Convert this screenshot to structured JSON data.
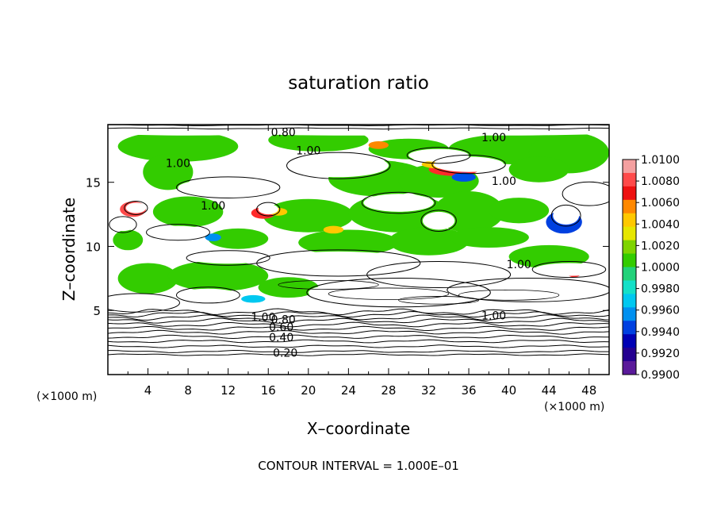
{
  "chart_data": {
    "type": "heatmap",
    "title": "saturation ratio",
    "xlabel": "X–coordinate",
    "ylabel": "Z–coordinate",
    "x_unit_label": "(×1000 m)",
    "y_unit_label": "(×1000 m)",
    "xlim": [
      0,
      50
    ],
    "ylim": [
      0,
      19.5
    ],
    "x_ticks": [
      4,
      8,
      12,
      16,
      20,
      24,
      28,
      32,
      36,
      40,
      44,
      48
    ],
    "y_ticks": [
      5,
      10,
      15
    ],
    "footer": "CONTOUR INTERVAL = 1.000E–01",
    "contour_labels": [
      {
        "x": 17.5,
        "y": 18.9,
        "text": "0.80"
      },
      {
        "x": 20.0,
        "y": 17.5,
        "text": "1.00"
      },
      {
        "x": 38.5,
        "y": 18.5,
        "text": "1.00"
      },
      {
        "x": 7.0,
        "y": 16.5,
        "text": "1.00"
      },
      {
        "x": 39.5,
        "y": 15.1,
        "text": "1.00"
      },
      {
        "x": 10.5,
        "y": 13.2,
        "text": "1.00"
      },
      {
        "x": 41.0,
        "y": 8.6,
        "text": "1.00"
      },
      {
        "x": 15.5,
        "y": 4.5,
        "text": "1.00"
      },
      {
        "x": 38.5,
        "y": 4.6,
        "text": "1.00"
      },
      {
        "x": 17.5,
        "y": 4.3,
        "text": "0.80"
      },
      {
        "x": 17.3,
        "y": 3.7,
        "text": "0.60"
      },
      {
        "x": 17.3,
        "y": 2.9,
        "text": "0.40"
      },
      {
        "x": 17.7,
        "y": 1.7,
        "text": "0.20"
      }
    ],
    "colorbar": {
      "labels": [
        "1.0100",
        "1.0080",
        "1.0060",
        "1.0040",
        "1.0020",
        "1.0000",
        "0.9980",
        "0.9960",
        "0.9940",
        "0.9920",
        "0.9900"
      ],
      "colors": [
        "#f4a0a0",
        "#ff4a4a",
        "#ee1111",
        "#ff8800",
        "#ffc800",
        "#e6e600",
        "#7fd400",
        "#33cc00",
        "#22d27a",
        "#14e0c8",
        "#00c8f0",
        "#0090f0",
        "#0040e0",
        "#0000b4",
        "#240090",
        "#5a1a9a"
      ]
    },
    "cloud_color": "#ffffff",
    "moist_color": "#33cc00"
  }
}
